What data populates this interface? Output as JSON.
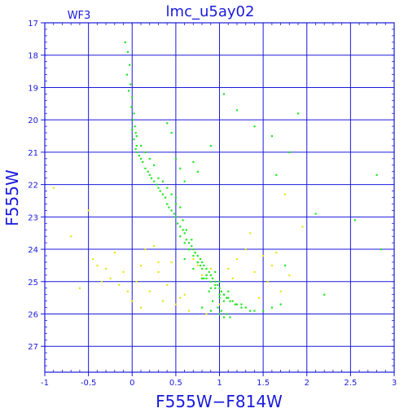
{
  "chart_data": {
    "type": "scatter",
    "title": "lmc_u5ay02",
    "panel_label": "WF3",
    "xlabel": "F555W−F814W",
    "ylabel": "F555W",
    "xlim": [
      -1,
      3
    ],
    "ylim": [
      27.8,
      17
    ],
    "y_inverted": true,
    "grid": true,
    "x_ticks": [
      -1,
      -0.5,
      0,
      0.5,
      1,
      1.5,
      2,
      2.5,
      3
    ],
    "x_tick_labels": [
      "-1",
      "-0.5",
      "0",
      "0.5",
      "1",
      "1.5",
      "2",
      "2.5",
      "3"
    ],
    "y_ticks": [
      17,
      18,
      19,
      20,
      21,
      22,
      23,
      24,
      25,
      26,
      27
    ],
    "y_tick_labels": [
      "17",
      "18",
      "19",
      "20",
      "21",
      "22",
      "23",
      "24",
      "25",
      "26",
      "27"
    ],
    "colors": {
      "axes": "#1a1adc",
      "grid": "#1a1adc",
      "series_main": "#22e622",
      "series_field": "#e6e61a"
    },
    "series": [
      {
        "color": "#22e622",
        "x": [
          -0.08,
          -0.05,
          -0.03,
          -0.06,
          -0.02,
          -0.04,
          0.0,
          -0.01,
          0.02,
          0.01,
          0.03,
          0.04,
          0.02,
          0.05,
          0.04,
          0.06,
          0.08,
          0.1,
          0.12,
          0.15,
          0.18,
          0.2,
          0.22,
          0.25,
          0.28,
          0.3,
          0.32,
          0.35,
          0.38,
          0.4,
          0.42,
          0.45,
          0.48,
          0.5,
          0.52,
          0.55,
          0.58,
          0.6,
          0.62,
          0.65,
          0.68,
          0.7,
          0.72,
          0.75,
          0.78,
          0.8,
          0.82,
          0.85,
          0.88,
          0.9,
          0.92,
          0.95,
          0.98,
          1.0,
          1.02,
          1.05,
          1.08,
          1.1,
          1.12,
          1.15,
          1.18,
          1.2,
          1.25,
          1.3,
          1.35,
          1.4,
          1.5,
          1.6,
          1.7,
          0.55,
          0.6,
          0.65,
          0.7,
          0.75,
          0.8,
          0.85,
          0.9,
          0.95,
          1.0,
          1.05,
          0.6,
          0.7,
          0.8,
          0.9,
          1.0,
          0.65,
          0.75,
          0.85,
          0.95,
          1.05,
          0.5,
          0.55,
          0.58,
          0.62,
          0.68,
          0.72,
          0.78,
          0.82,
          0.88,
          0.92,
          0.98,
          1.02,
          1.08,
          1.12,
          0.4,
          0.45,
          0.5,
          0.3,
          0.35,
          0.25,
          0.2,
          0.15,
          0.1,
          0.05,
          0.0,
          1.0,
          1.1,
          1.25,
          0.95,
          0.85,
          1.0,
          1.05,
          0.9,
          0.8,
          1.9,
          2.1,
          1.65,
          2.55,
          2.8,
          1.05,
          0.4,
          0.45,
          0.5,
          0.55,
          0.6,
          0.7,
          2.85,
          2.2,
          1.75,
          1.2,
          1.4,
          1.6,
          1.8,
          0.9,
          0.75
        ],
        "y": [
          17.6,
          17.9,
          18.3,
          18.6,
          18.9,
          19.1,
          19.3,
          19.6,
          19.8,
          20.0,
          20.2,
          20.4,
          20.6,
          20.8,
          20.9,
          21.0,
          21.1,
          21.2,
          21.3,
          21.5,
          21.6,
          21.7,
          21.8,
          21.9,
          22.0,
          22.1,
          22.2,
          22.3,
          22.4,
          22.6,
          22.7,
          22.8,
          22.9,
          23.0,
          23.2,
          23.3,
          23.4,
          23.5,
          23.7,
          23.8,
          23.9,
          24.0,
          24.1,
          24.2,
          24.3,
          24.4,
          24.5,
          24.6,
          24.7,
          24.8,
          24.9,
          25.0,
          25.1,
          25.2,
          25.3,
          25.4,
          25.5,
          25.5,
          25.6,
          25.6,
          25.7,
          25.7,
          25.8,
          25.8,
          25.9,
          25.9,
          25.9,
          25.8,
          25.7,
          23.6,
          23.8,
          24.0,
          24.2,
          24.4,
          24.6,
          24.8,
          25.0,
          25.2,
          25.4,
          25.6,
          24.3,
          24.6,
          24.9,
          25.2,
          25.5,
          24.0,
          24.4,
          24.8,
          25.1,
          25.4,
          22.4,
          22.7,
          23.1,
          23.4,
          23.7,
          24.1,
          24.5,
          24.9,
          25.3,
          25.6,
          25.8,
          25.9,
          26.0,
          26.1,
          22.1,
          22.3,
          22.6,
          21.8,
          21.9,
          21.4,
          21.2,
          21.0,
          20.8,
          20.5,
          20.3,
          25.0,
          25.3,
          25.7,
          24.7,
          24.9,
          26.0,
          26.1,
          25.9,
          25.8,
          19.8,
          22.9,
          21.7,
          23.1,
          21.7,
          19.2,
          20.1,
          20.4,
          21.2,
          21.5,
          21.9,
          21.3,
          24.0,
          25.4,
          24.5,
          19.7,
          20.2,
          20.5,
          21.0,
          20.8,
          21.6
        ]
      },
      {
        "color": "#e6e61a",
        "x": [
          -0.9,
          -0.7,
          -0.5,
          -0.45,
          -0.3,
          -0.2,
          -0.15,
          -0.1,
          -0.05,
          0.0,
          0.05,
          0.1,
          0.2,
          0.3,
          0.35,
          0.4,
          0.45,
          0.5,
          0.6,
          0.7,
          0.75,
          0.8,
          0.9,
          1.1,
          1.2,
          1.3,
          1.4,
          1.5,
          1.55,
          1.6,
          1.65,
          1.7,
          1.8,
          -0.6,
          -0.4,
          -0.25,
          0.15,
          0.25,
          0.55,
          1.35,
          1.75,
          1.95,
          0.65,
          -0.35,
          0.85,
          1.0,
          1.15,
          1.45,
          0.3,
          0.1
        ],
        "y": [
          22.1,
          23.6,
          22.8,
          24.3,
          24.6,
          24.1,
          25.1,
          24.7,
          25.3,
          25.6,
          25.0,
          24.5,
          25.3,
          24.7,
          25.6,
          25.1,
          24.4,
          25.7,
          25.4,
          24.3,
          24.5,
          24.8,
          24.6,
          24.6,
          24.3,
          24.0,
          24.7,
          24.2,
          25.0,
          24.5,
          24.1,
          25.3,
          24.8,
          25.2,
          24.5,
          24.9,
          24.0,
          23.9,
          25.5,
          23.5,
          22.3,
          23.3,
          25.9,
          25.0,
          26.0,
          25.7,
          24.9,
          25.5,
          24.4,
          25.8
        ]
      }
    ]
  }
}
